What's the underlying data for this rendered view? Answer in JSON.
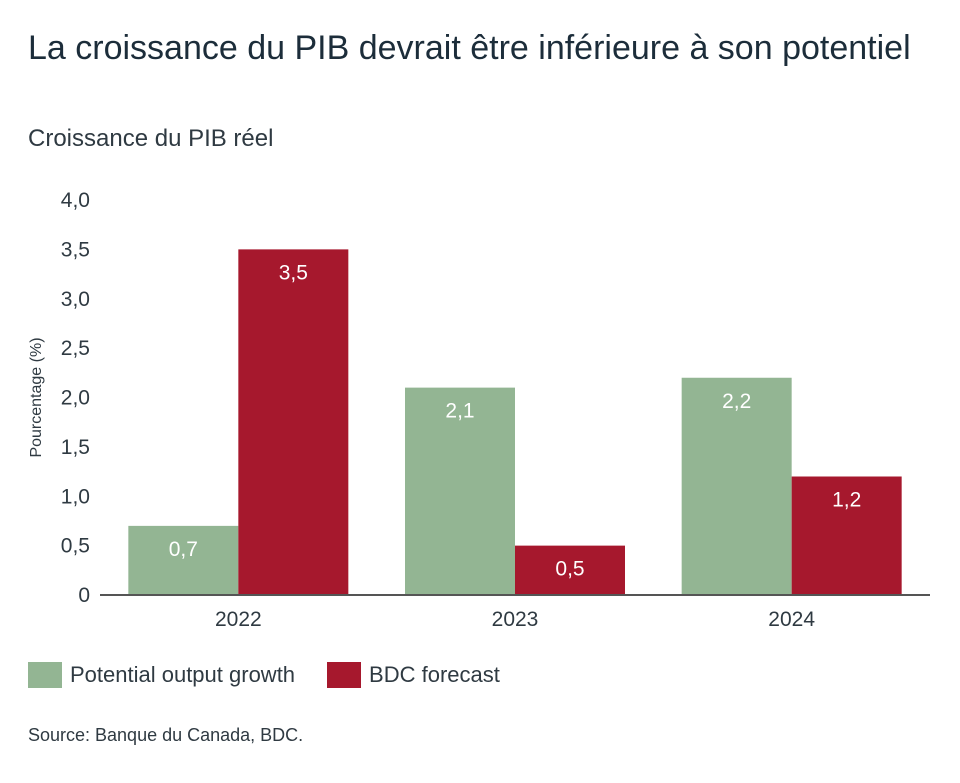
{
  "title": "La croissance du PIB devrait être inférieure à son potentiel",
  "subtitle": "Croissance du PIB réel",
  "source": "Source: Banque du Canada, BDC.",
  "chart_data": {
    "type": "bar",
    "categories": [
      "2022",
      "2023",
      "2024"
    ],
    "series": [
      {
        "name": "Potential output growth",
        "values": [
          0.7,
          2.1,
          2.2
        ],
        "labels": [
          "0,7",
          "2,1",
          "2,2"
        ],
        "color": "#93b593"
      },
      {
        "name": "BDC forecast",
        "values": [
          3.5,
          0.5,
          1.2
        ],
        "labels": [
          "3,5",
          "0,5",
          "1,2"
        ],
        "color": "#a6182d"
      }
    ],
    "ylabel": "Pourcentage (%)",
    "ylim": [
      0,
      4
    ],
    "yticks": [
      0,
      0.5,
      1.0,
      1.5,
      2.0,
      2.5,
      3.0,
      3.5,
      4.0
    ],
    "ytick_labels": [
      "0",
      "0,5",
      "1,0",
      "1,5",
      "2,0",
      "2,5",
      "3,0",
      "3,5",
      "4,0"
    ],
    "grid": false,
    "legend_position": "bottom-left"
  }
}
